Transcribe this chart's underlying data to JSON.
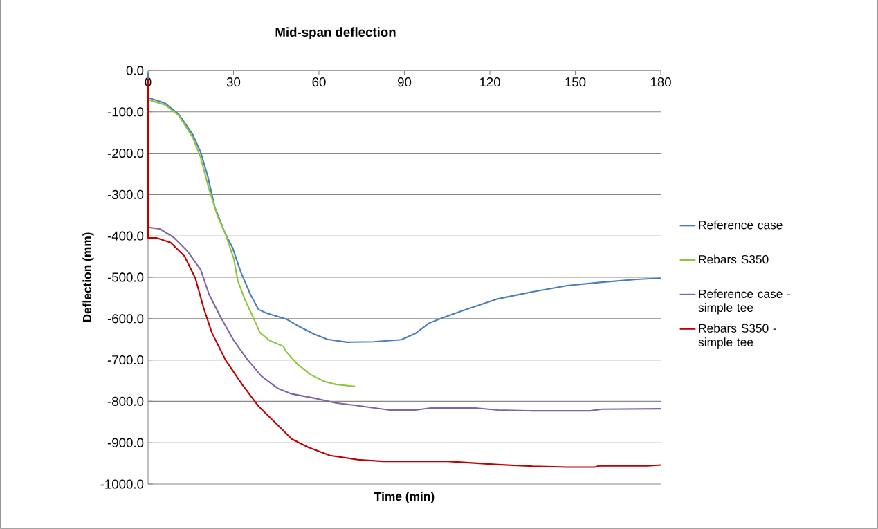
{
  "chart_data": {
    "type": "line",
    "title": "Mid-span deflection",
    "xlabel": "Time (min)",
    "ylabel": "Deflection (mm)",
    "xlim": [
      0,
      180
    ],
    "xticks": [
      0,
      30,
      60,
      90,
      120,
      150,
      180
    ],
    "ylim": [
      -1000,
      0
    ],
    "yticks": [
      {
        "value": 0,
        "label": "0.0"
      },
      {
        "value": -100,
        "label": "-100.0"
      },
      {
        "value": -200,
        "label": "-200.0"
      },
      {
        "value": -300,
        "label": "-300.0"
      },
      {
        "value": -400,
        "label": "-400.0"
      },
      {
        "value": -500,
        "label": "-500.0"
      },
      {
        "value": -600,
        "label": "-600.0"
      },
      {
        "value": -700,
        "label": "-700.0"
      },
      {
        "value": -800,
        "label": "-800.0"
      },
      {
        "value": -900,
        "label": "-900.0"
      },
      {
        "value": -1000,
        "label": "-1000.0"
      }
    ],
    "grid": "y",
    "legend": "right",
    "marker": "none",
    "line_style": "solid",
    "series": [
      {
        "name": "Reference case",
        "color": "#4a7ebb",
        "x": [
          0,
          0.2,
          6,
          10.8,
          15.7,
          18.5,
          21,
          23.4,
          27.2,
          29.7,
          32.6,
          35.9,
          38.8,
          41.7,
          48.5,
          53.3,
          58.2,
          63,
          69.8,
          79.3,
          88.9,
          93.8,
          98.6,
          103.5,
          110.8,
          122.9,
          135,
          147.2,
          159.3,
          171.5,
          180
        ],
        "values": [
          -5,
          -66,
          -79,
          -106,
          -155,
          -198,
          -257,
          -330,
          -396,
          -429,
          -488,
          -541,
          -578,
          -587,
          -601,
          -620,
          -637,
          -650,
          -657,
          -656,
          -651,
          -636,
          -611,
          -598,
          -580,
          -552,
          -535,
          -520,
          -512,
          -505,
          -502
        ]
      },
      {
        "name": "Rebars S350",
        "color": "#8cc63f",
        "x": [
          0.2,
          6,
          10.8,
          15.7,
          18.5,
          21.4,
          24.3,
          27.2,
          30.1,
          31.5,
          34,
          36.9,
          39.3,
          42.7,
          47.5,
          48.5,
          52.4,
          57.2,
          62,
          65.9,
          72.7
        ],
        "values": [
          -71,
          -83,
          -109,
          -162,
          -211,
          -287,
          -350,
          -396,
          -455,
          -508,
          -554,
          -597,
          -634,
          -653,
          -667,
          -680,
          -710,
          -736,
          -752,
          -759,
          -764
        ]
      },
      {
        "name": "Reference case - simple tee",
        "color": "#7f64a6",
        "x": [
          0,
          4.1,
          8.9,
          13.7,
          18.5,
          21.4,
          25.3,
          30.1,
          35,
          39.8,
          45.6,
          50.4,
          58.2,
          65.9,
          74.3,
          84.8,
          93.8,
          99.3,
          114.9,
          122.9,
          135,
          155.2,
          159.3,
          180
        ],
        "values": [
          -379,
          -383,
          -403,
          -436,
          -482,
          -541,
          -594,
          -653,
          -700,
          -739,
          -769,
          -782,
          -792,
          -804,
          -811,
          -821,
          -821,
          -816,
          -816,
          -821,
          -823,
          -823,
          -819,
          -818
        ]
      },
      {
        "name": "Rebars S350 - simple tee",
        "color": "#c00000",
        "x": [
          0,
          0,
          3.1,
          7.9,
          12.8,
          16.6,
          19.5,
          22.4,
          27.2,
          33,
          38.8,
          44.6,
          50.4,
          56.2,
          63.9,
          73.6,
          82.3,
          105.2,
          122.9,
          135,
          147.2,
          156.8,
          158.4,
          175.4,
          180
        ],
        "values": [
          -20,
          -405,
          -405,
          -416,
          -449,
          -502,
          -574,
          -634,
          -700,
          -759,
          -812,
          -851,
          -891,
          -911,
          -931,
          -941,
          -945,
          -945,
          -953,
          -957,
          -959,
          -959,
          -956,
          -956,
          -954
        ]
      }
    ]
  }
}
